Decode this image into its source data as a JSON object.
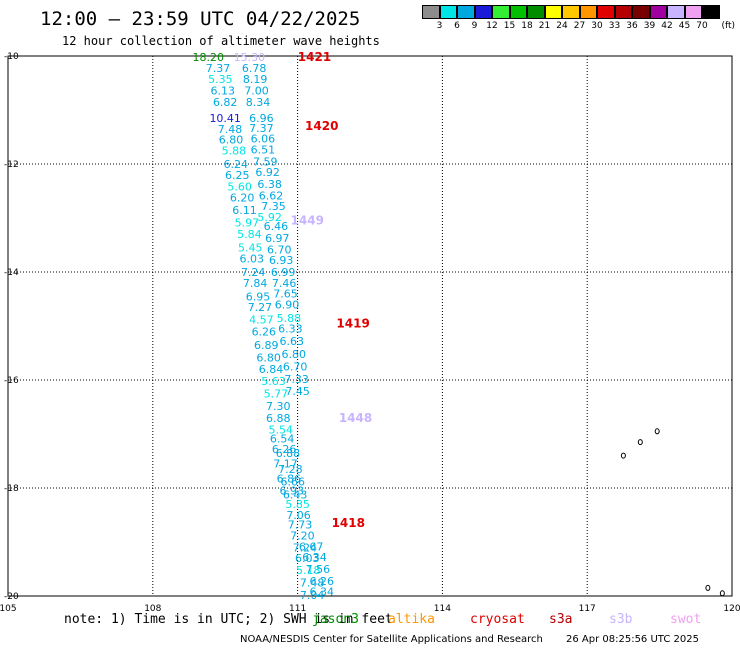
{
  "header": {
    "title": "12:00 — 23:59 UTC 04/22/2025",
    "subtitle": "12 hour collection of altimeter wave heights"
  },
  "color_scale": {
    "unit_label": "(ft)",
    "swatches": [
      {
        "color": "#8c8c8c",
        "label": "3"
      },
      {
        "color": "#00e5e5",
        "label": "6"
      },
      {
        "color": "#00a8e0",
        "label": "9"
      },
      {
        "color": "#1a1ad8",
        "label": "12"
      },
      {
        "color": "#33ee33",
        "label": "15"
      },
      {
        "color": "#00c000",
        "label": "18"
      },
      {
        "color": "#008c00",
        "label": "21"
      },
      {
        "color": "#ffff00",
        "label": "24"
      },
      {
        "color": "#ffc800",
        "label": "27"
      },
      {
        "color": "#ff9600",
        "label": "30"
      },
      {
        "color": "#e00000",
        "label": "33"
      },
      {
        "color": "#b40000",
        "label": "36"
      },
      {
        "color": "#780000",
        "label": "39"
      },
      {
        "color": "#a000a0",
        "label": "42"
      },
      {
        "color": "#c8b4ff",
        "label": "45"
      },
      {
        "color": "#f0a0f0",
        "label": "70"
      },
      {
        "color": "#000000",
        "label": ""
      }
    ]
  },
  "map": {
    "lon_range": [
      105,
      120
    ],
    "lat_range": [
      -20,
      -10
    ],
    "lon_ticks": [
      "105",
      "108",
      "111",
      "114",
      "117",
      "120"
    ],
    "lat_ticks": [
      "-10",
      "-12",
      "-14",
      "-16",
      "-18",
      "-20"
    ],
    "grid": true
  },
  "chart_data": {
    "type": "scatter",
    "title": "12:00 — 23:59 UTC 04/22/2025",
    "subtitle": "12 hour collection of altimeter wave heights",
    "xlim": [
      105,
      120
    ],
    "ylim": [
      -20,
      -10
    ],
    "points": [
      {
        "lon": 109.15,
        "lat": -10.02,
        "value": "18.20",
        "color": "#008c00"
      },
      {
        "lon": 110.0,
        "lat": -10.02,
        "value": "15.30",
        "color": "#c8b4ff"
      },
      {
        "lon": 109.35,
        "lat": -10.22,
        "value": "7.37",
        "color": "#00a8e0"
      },
      {
        "lon": 110.1,
        "lat": -10.22,
        "value": "6.78",
        "color": "#00a8e0"
      },
      {
        "lon": 109.4,
        "lat": -10.43,
        "value": "5.35",
        "color": "#00e5e5"
      },
      {
        "lon": 110.12,
        "lat": -10.43,
        "value": "8.19",
        "color": "#00a8e0"
      },
      {
        "lon": 109.45,
        "lat": -10.64,
        "value": "6.13",
        "color": "#00a8e0"
      },
      {
        "lon": 110.15,
        "lat": -10.64,
        "value": "7.00",
        "color": "#00a8e0"
      },
      {
        "lon": 109.5,
        "lat": -10.85,
        "value": "6.82",
        "color": "#00a8e0"
      },
      {
        "lon": 110.18,
        "lat": -10.85,
        "value": "8.34",
        "color": "#00a8e0"
      },
      {
        "lon": 109.5,
        "lat": -11.15,
        "value": "10.41",
        "color": "#1a1ad8"
      },
      {
        "lon": 110.25,
        "lat": -11.15,
        "value": "6.96",
        "color": "#00a8e0"
      },
      {
        "lon": 109.6,
        "lat": -11.35,
        "value": "7.48",
        "color": "#00a8e0"
      },
      {
        "lon": 110.25,
        "lat": -11.33,
        "value": "7.37",
        "color": "#00a8e0"
      },
      {
        "lon": 109.62,
        "lat": -11.55,
        "value": "6.80",
        "color": "#00a8e0"
      },
      {
        "lon": 110.28,
        "lat": -11.53,
        "value": "6.06",
        "color": "#00a8e0"
      },
      {
        "lon": 109.68,
        "lat": -11.75,
        "value": "5.88",
        "color": "#00e5e5"
      },
      {
        "lon": 110.28,
        "lat": -11.73,
        "value": "6.51",
        "color": "#00a8e0"
      },
      {
        "lon": 109.72,
        "lat": -12.0,
        "value": "6.24",
        "color": "#00a8e0"
      },
      {
        "lon": 110.33,
        "lat": -11.95,
        "value": "7.59",
        "color": "#00a8e0"
      },
      {
        "lon": 109.75,
        "lat": -12.2,
        "value": "6.25",
        "color": "#00a8e0"
      },
      {
        "lon": 110.38,
        "lat": -12.15,
        "value": "6.92",
        "color": "#00a8e0"
      },
      {
        "lon": 109.8,
        "lat": -12.42,
        "value": "5.60",
        "color": "#00e5e5"
      },
      {
        "lon": 110.42,
        "lat": -12.37,
        "value": "6.38",
        "color": "#00a8e0"
      },
      {
        "lon": 109.85,
        "lat": -12.62,
        "value": "6.20",
        "color": "#00a8e0"
      },
      {
        "lon": 110.45,
        "lat": -12.58,
        "value": "6.62",
        "color": "#00a8e0"
      },
      {
        "lon": 109.9,
        "lat": -12.85,
        "value": "6.11",
        "color": "#00a8e0"
      },
      {
        "lon": 110.5,
        "lat": -12.78,
        "value": "7.35",
        "color": "#00a8e0"
      },
      {
        "lon": 109.95,
        "lat": -13.08,
        "value": "5.97",
        "color": "#00e5e5"
      },
      {
        "lon": 110.42,
        "lat": -12.98,
        "value": "5.92",
        "color": "#00e5e5"
      },
      {
        "lon": 110.55,
        "lat": -13.15,
        "value": "6.46",
        "color": "#00a8e0"
      },
      {
        "lon": 110.0,
        "lat": -13.3,
        "value": "5.84",
        "color": "#00e5e5"
      },
      {
        "lon": 110.58,
        "lat": -13.37,
        "value": "6.97",
        "color": "#00a8e0"
      },
      {
        "lon": 110.02,
        "lat": -13.55,
        "value": "5.45",
        "color": "#00e5e5"
      },
      {
        "lon": 110.62,
        "lat": -13.58,
        "value": "6.70",
        "color": "#00a8e0"
      },
      {
        "lon": 110.05,
        "lat": -13.75,
        "value": "6.03",
        "color": "#00a8e0"
      },
      {
        "lon": 110.66,
        "lat": -13.78,
        "value": "6.93",
        "color": "#00a8e0"
      },
      {
        "lon": 110.08,
        "lat": -14.0,
        "value": "7.24",
        "color": "#00a8e0"
      },
      {
        "lon": 110.7,
        "lat": -14.0,
        "value": "6.99",
        "color": "#00a8e0"
      },
      {
        "lon": 110.12,
        "lat": -14.2,
        "value": "7.84",
        "color": "#00a8e0"
      },
      {
        "lon": 110.72,
        "lat": -14.2,
        "value": "7.46",
        "color": "#00a8e0"
      },
      {
        "lon": 110.18,
        "lat": -14.45,
        "value": "6.95",
        "color": "#00a8e0"
      },
      {
        "lon": 110.75,
        "lat": -14.4,
        "value": "7.65",
        "color": "#00a8e0"
      },
      {
        "lon": 110.22,
        "lat": -14.65,
        "value": "7.27",
        "color": "#00a8e0"
      },
      {
        "lon": 110.78,
        "lat": -14.6,
        "value": "6.90",
        "color": "#00a8e0"
      },
      {
        "lon": 110.25,
        "lat": -14.88,
        "value": "4.57",
        "color": "#00e5e5"
      },
      {
        "lon": 110.82,
        "lat": -14.85,
        "value": "5.88",
        "color": "#00e5e5"
      },
      {
        "lon": 110.3,
        "lat": -15.1,
        "value": "6.26",
        "color": "#00a8e0"
      },
      {
        "lon": 110.85,
        "lat": -15.05,
        "value": "6.33",
        "color": "#00a8e0"
      },
      {
        "lon": 110.35,
        "lat": -15.35,
        "value": "6.89",
        "color": "#00a8e0"
      },
      {
        "lon": 110.88,
        "lat": -15.28,
        "value": "6.63",
        "color": "#00a8e0"
      },
      {
        "lon": 110.4,
        "lat": -15.58,
        "value": "6.80",
        "color": "#00a8e0"
      },
      {
        "lon": 110.92,
        "lat": -15.52,
        "value": "6.80",
        "color": "#00a8e0"
      },
      {
        "lon": 110.45,
        "lat": -15.8,
        "value": "6.84",
        "color": "#00a8e0"
      },
      {
        "lon": 110.95,
        "lat": -15.75,
        "value": "6.70",
        "color": "#00a8e0"
      },
      {
        "lon": 110.5,
        "lat": -16.02,
        "value": "5.63",
        "color": "#00e5e5"
      },
      {
        "lon": 110.98,
        "lat": -15.98,
        "value": "7.33",
        "color": "#00a8e0"
      },
      {
        "lon": 110.55,
        "lat": -16.25,
        "value": "5.77",
        "color": "#00e5e5"
      },
      {
        "lon": 111.0,
        "lat": -16.2,
        "value": "7.45",
        "color": "#00a8e0"
      },
      {
        "lon": 110.6,
        "lat": -16.48,
        "value": "7.30",
        "color": "#00a8e0"
      },
      {
        "lon": 110.6,
        "lat": -16.7,
        "value": "6.88",
        "color": "#00a8e0"
      },
      {
        "lon": 110.65,
        "lat": -16.92,
        "value": "5.54",
        "color": "#00e5e5"
      },
      {
        "lon": 110.68,
        "lat": -17.08,
        "value": "6.54",
        "color": "#00a8e0"
      },
      {
        "lon": 110.72,
        "lat": -17.28,
        "value": "6.26",
        "color": "#00a8e0"
      },
      {
        "lon": 110.8,
        "lat": -17.35,
        "value": "6.88",
        "color": "#00a8e0"
      },
      {
        "lon": 110.75,
        "lat": -17.55,
        "value": "7.17",
        "color": "#00a8e0"
      },
      {
        "lon": 110.85,
        "lat": -17.65,
        "value": "7.28",
        "color": "#00a8e0"
      },
      {
        "lon": 110.82,
        "lat": -17.82,
        "value": "6.86",
        "color": "#00a8e0"
      },
      {
        "lon": 110.9,
        "lat": -17.88,
        "value": "6.66",
        "color": "#00a8e0"
      },
      {
        "lon": 110.88,
        "lat": -18.05,
        "value": "6.93",
        "color": "#00a8e0"
      },
      {
        "lon": 110.95,
        "lat": -18.12,
        "value": "6.43",
        "color": "#00a8e0"
      },
      {
        "lon": 111.0,
        "lat": -18.3,
        "value": "5.85",
        "color": "#00e5e5"
      },
      {
        "lon": 111.02,
        "lat": -18.5,
        "value": "7.06",
        "color": "#00a8e0"
      },
      {
        "lon": 111.05,
        "lat": -18.68,
        "value": "7.73",
        "color": "#00a8e0"
      },
      {
        "lon": 111.1,
        "lat": -18.88,
        "value": "7.20",
        "color": "#00a8e0"
      },
      {
        "lon": 111.15,
        "lat": -19.1,
        "value": "7.24",
        "color": "#00a8e0"
      },
      {
        "lon": 111.28,
        "lat": -19.08,
        "value": "6.67",
        "color": "#00a8e0"
      },
      {
        "lon": 111.2,
        "lat": -19.3,
        "value": "6.03",
        "color": "#00a8e0"
      },
      {
        "lon": 111.35,
        "lat": -19.28,
        "value": "6.34",
        "color": "#00a8e0"
      },
      {
        "lon": 111.22,
        "lat": -19.52,
        "value": "5.18",
        "color": "#00e5e5"
      },
      {
        "lon": 111.42,
        "lat": -19.5,
        "value": "7.56",
        "color": "#00a8e0"
      },
      {
        "lon": 111.3,
        "lat": -19.75,
        "value": "7.48",
        "color": "#00a8e0"
      },
      {
        "lon": 111.5,
        "lat": -19.72,
        "value": "6.26",
        "color": "#00a8e0"
      },
      {
        "lon": 111.3,
        "lat": -19.98,
        "value": "7.04",
        "color": "#00a8e0"
      },
      {
        "lon": 111.5,
        "lat": -19.92,
        "value": "6.34",
        "color": "#00a8e0"
      }
    ],
    "pass_labels": [
      {
        "lon": 111.35,
        "lat": -10.02,
        "text": "1421",
        "color": "#e00000"
      },
      {
        "lon": 111.5,
        "lat": -11.3,
        "text": "1420",
        "color": "#e00000"
      },
      {
        "lon": 111.2,
        "lat": -13.05,
        "text": "1449",
        "color": "#c8b4ff"
      },
      {
        "lon": 112.15,
        "lat": -14.95,
        "text": "1419",
        "color": "#e00000"
      },
      {
        "lon": 112.2,
        "lat": -16.7,
        "text": "1448",
        "color": "#c8b4ff"
      },
      {
        "lon": 112.05,
        "lat": -18.65,
        "text": "1418",
        "color": "#e00000"
      }
    ]
  },
  "footer": {
    "note": "note: 1) Time is in UTC; 2) SWH is in feet",
    "satellites": [
      {
        "name": "jason3",
        "color": "#008c00"
      },
      {
        "name": "altika",
        "color": "#ff9600"
      },
      {
        "name": "cryosat",
        "color": "#e00000"
      },
      {
        "name": "s3a",
        "color": "#b40000"
      },
      {
        "name": "s3b",
        "color": "#c8b4ff"
      },
      {
        "name": "swot",
        "color": "#f0a0f0"
      }
    ],
    "credit": "NOAA/NESDIS Center for Satellite Applications and Research",
    "timestamp": "26 Apr 08:25:56 UTC 2025"
  }
}
